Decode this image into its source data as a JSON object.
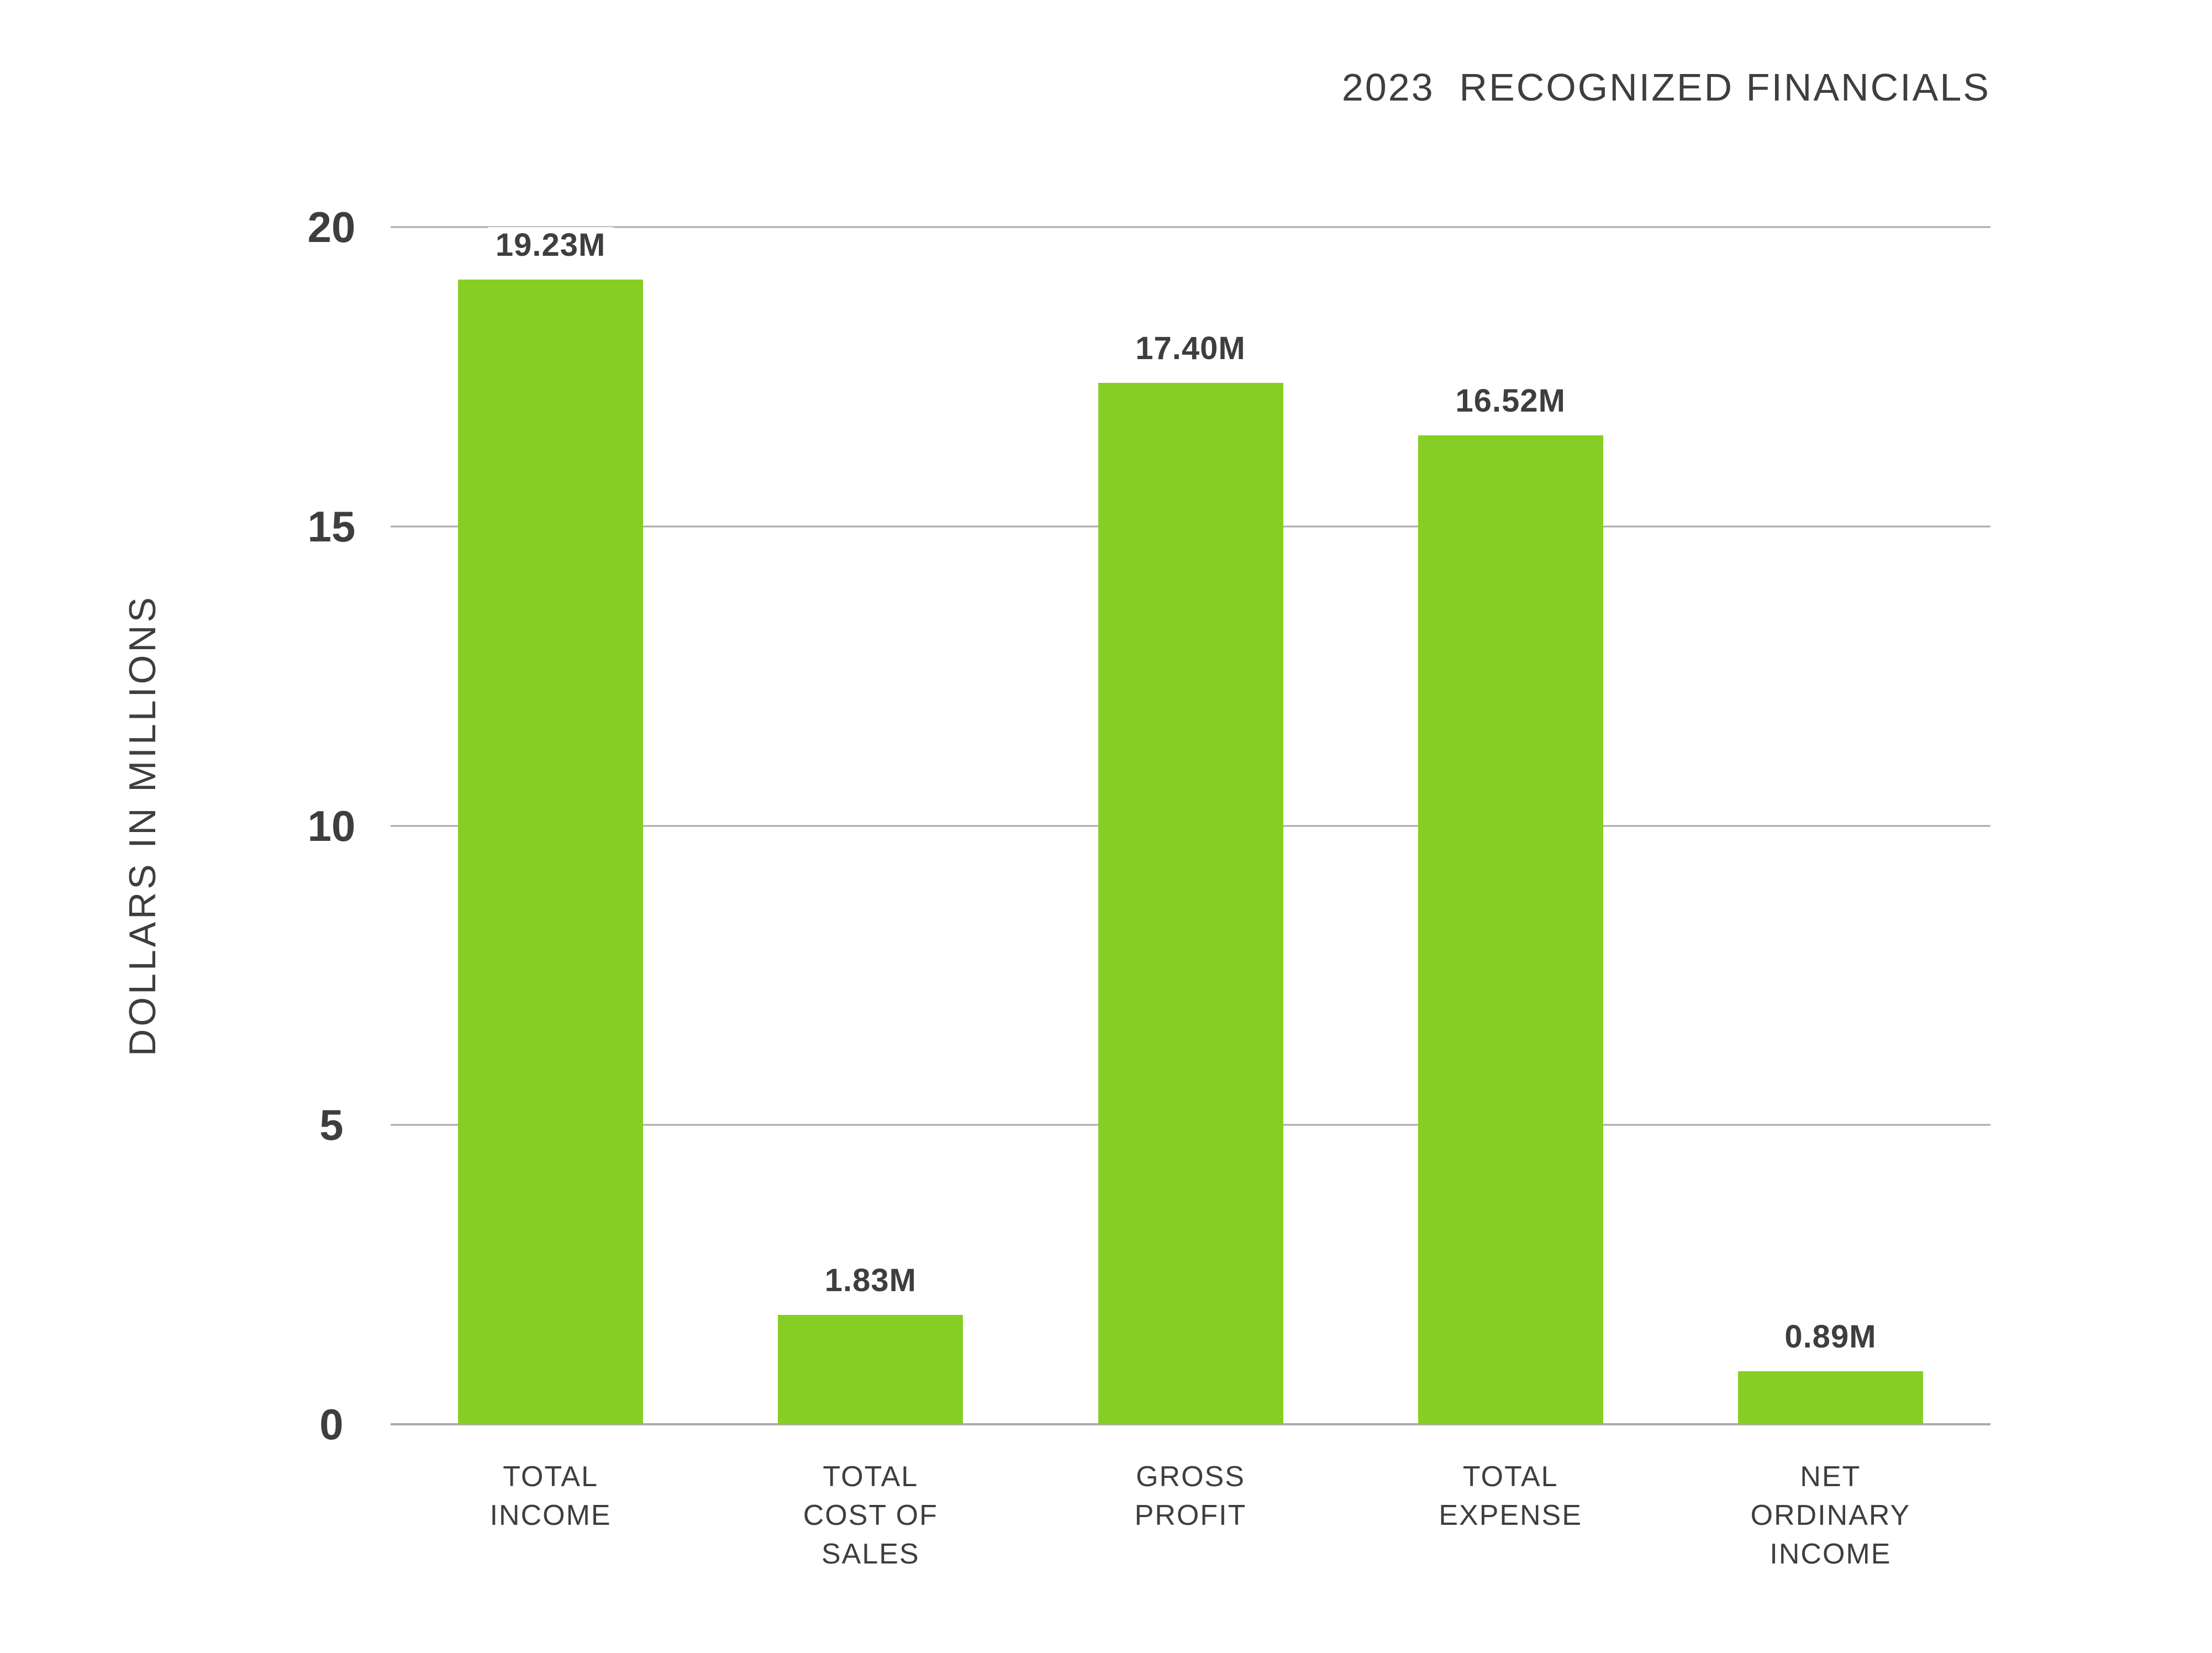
{
  "colors": {
    "bar": "#87CE24",
    "grid": "#A9A9A9",
    "text": "#3E3E3E",
    "background": "#FFFFFF"
  },
  "chart_data": {
    "type": "bar",
    "title": "2023  RECOGNIZED FINANCIALS",
    "ylabel": "DOLLARS IN MILLIONS",
    "xlabel": "",
    "categories": [
      "TOTAL INCOME",
      "TOTAL COST OF SALES",
      "GROSS PROFIT",
      "TOTAL EXPENSE",
      "NET ORDINARY INCOME"
    ],
    "categories_multiline": [
      "TOTAL\nINCOME",
      "TOTAL\nCOST OF\nSALES",
      "GROSS\nPROFIT",
      "TOTAL\nEXPENSE",
      "NET\nORDINARY\nINCOME"
    ],
    "values": [
      19.23,
      1.83,
      17.4,
      16.52,
      0.89
    ],
    "value_labels": [
      "19.23M",
      "1.83M",
      "17.40M",
      "16.52M",
      "0.89M"
    ],
    "ylim": [
      0,
      20
    ],
    "yticks": [
      0,
      5,
      10,
      15,
      20
    ],
    "grid": true,
    "legend_position": "none",
    "bar_color": "#87CE24"
  }
}
